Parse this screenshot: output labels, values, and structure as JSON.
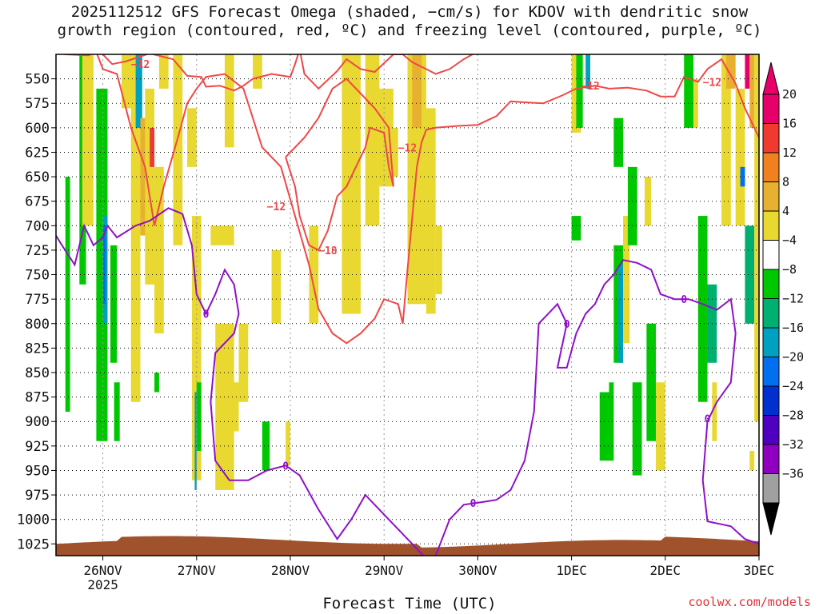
{
  "chart_data": {
    "type": "heatmap",
    "title_line1": "2025112512 GFS Forecast Omega (shaded, −cm/s) for KDOV with dendritic snow",
    "title_line2": "growth region (contoured, red, ºC) and freezing level (contoured, purple, ºC)",
    "xlabel": "Forecast Time (UTC)",
    "x_ticks": [
      "26NOV",
      "27NOV",
      "28NOV",
      "29NOV",
      "30NOV",
      "1DEC",
      "2DEC",
      "3DEC"
    ],
    "x_year_label": "2025",
    "x_range_days": [
      25.5,
      33.0
    ],
    "y_ticks": [
      550,
      575,
      600,
      625,
      650,
      675,
      700,
      725,
      750,
      775,
      800,
      825,
      850,
      875,
      900,
      925,
      950,
      975,
      1000,
      1025
    ],
    "y_range_hpa": [
      525,
      1037
    ],
    "colorbar": {
      "labels": [
        "20",
        "16",
        "12",
        "8",
        "4",
        "−4",
        "−8",
        "−12",
        "−16",
        "−20",
        "−24",
        "−28",
        "−32",
        "−36"
      ],
      "colors": [
        "#e8006a",
        "#f03a30",
        "#f08020",
        "#e8b030",
        "#e8d830",
        "#ffffff",
        "#00c800",
        "#00b070",
        "#00a0c0",
        "#0070f0",
        "#0030d0",
        "#5000c0",
        "#9000c0",
        "#a0a0a0"
      ],
      "top_arrow_color": "#e8006a",
      "bottom_arrow_color": "#000000"
    },
    "contour_labels": {
      "red": [
        "−12",
        "−12",
        "−12",
        "−18",
        "−12",
        "−12"
      ],
      "purple": [
        "0",
        "0",
        "0",
        "0",
        "0",
        "0"
      ]
    },
    "red_12C_line": [
      [
        25.5,
        522
      ],
      [
        25.6,
        525
      ],
      [
        25.85,
        526
      ],
      [
        25.95,
        520
      ],
      [
        26.1,
        535
      ],
      [
        26.25,
        532
      ],
      [
        26.5,
        524
      ],
      [
        26.75,
        530
      ],
      [
        26.9,
        547
      ],
      [
        27.05,
        548
      ],
      [
        27.1,
        558
      ],
      [
        27.25,
        557
      ],
      [
        27.4,
        562
      ],
      [
        27.5,
        557
      ],
      [
        27.6,
        550
      ],
      [
        27.8,
        545
      ],
      [
        28.0,
        548
      ],
      [
        28.05,
        535
      ],
      [
        28.1,
        520
      ],
      [
        28.15,
        545
      ],
      [
        28.3,
        560
      ],
      [
        28.5,
        542
      ],
      [
        28.6,
        530
      ],
      [
        28.75,
        540
      ],
      [
        28.9,
        543
      ],
      [
        29.1,
        525
      ],
      [
        29.2,
        525
      ],
      [
        29.3,
        533
      ],
      [
        29.45,
        540
      ],
      [
        29.55,
        545
      ],
      [
        29.7,
        540
      ],
      [
        29.85,
        530
      ],
      [
        30.0,
        522
      ]
    ],
    "red_12C_line_2": [
      [
        25.92,
        520
      ],
      [
        26.0,
        540
      ],
      [
        26.15,
        545
      ],
      [
        26.3,
        600
      ],
      [
        26.45,
        640
      ],
      [
        26.55,
        700
      ],
      [
        26.65,
        660
      ],
      [
        26.8,
        610
      ],
      [
        26.9,
        575
      ],
      [
        27.0,
        560
      ],
      [
        27.1,
        548
      ],
      [
        27.3,
        545
      ],
      [
        27.5,
        560
      ],
      [
        27.6,
        590
      ],
      [
        27.7,
        620
      ],
      [
        27.9,
        640
      ],
      [
        28.05,
        690
      ],
      [
        28.2,
        740
      ],
      [
        28.3,
        785
      ],
      [
        28.45,
        810
      ],
      [
        28.6,
        820
      ],
      [
        28.75,
        810
      ],
      [
        28.9,
        795
      ],
      [
        29.0,
        775
      ],
      [
        29.15,
        780
      ],
      [
        29.2,
        800
      ],
      [
        29.25,
        745
      ],
      [
        29.35,
        640
      ],
      [
        29.4,
        615
      ],
      [
        29.45,
        602
      ],
      [
        29.55,
        600
      ],
      [
        29.8,
        598
      ],
      [
        30.0,
        597
      ],
      [
        30.2,
        588
      ],
      [
        30.35,
        573
      ],
      [
        30.5,
        574
      ],
      [
        30.7,
        575
      ],
      [
        30.9,
        567
      ],
      [
        31.05,
        560
      ],
      [
        31.25,
        557
      ],
      [
        31.4,
        560
      ],
      [
        31.6,
        559
      ],
      [
        31.8,
        562
      ],
      [
        31.95,
        568
      ],
      [
        32.1,
        568
      ],
      [
        32.2,
        548
      ],
      [
        32.35,
        553
      ],
      [
        32.45,
        540
      ],
      [
        32.6,
        530
      ],
      [
        32.75,
        555
      ],
      [
        32.85,
        580
      ],
      [
        33.0,
        610
      ]
    ],
    "red_18C_line": [
      [
        27.95,
        630
      ],
      [
        28.05,
        660
      ],
      [
        28.1,
        690
      ],
      [
        28.2,
        720
      ],
      [
        28.3,
        725
      ],
      [
        28.4,
        705
      ],
      [
        28.5,
        670
      ],
      [
        28.6,
        660
      ],
      [
        28.7,
        640
      ],
      [
        28.8,
        620
      ],
      [
        28.85,
        600
      ],
      [
        29.0,
        605
      ],
      [
        29.05,
        640
      ],
      [
        29.1,
        660
      ],
      [
        29.05,
        600
      ],
      [
        28.9,
        580
      ],
      [
        28.75,
        565
      ],
      [
        28.6,
        550
      ],
      [
        28.45,
        560
      ],
      [
        28.3,
        590
      ],
      [
        28.15,
        610
      ],
      [
        27.95,
        630
      ]
    ],
    "purple_0C_line": [
      [
        25.5,
        710
      ],
      [
        25.55,
        718
      ],
      [
        25.7,
        740
      ],
      [
        25.8,
        700
      ],
      [
        25.9,
        720
      ],
      [
        26.0,
        712
      ],
      [
        26.05,
        700
      ],
      [
        26.15,
        712
      ],
      [
        26.35,
        700
      ],
      [
        26.5,
        695
      ],
      [
        26.7,
        682
      ],
      [
        26.85,
        688
      ],
      [
        26.95,
        720
      ],
      [
        27.0,
        770
      ],
      [
        27.1,
        790
      ],
      [
        27.2,
        770
      ],
      [
        27.3,
        745
      ],
      [
        27.4,
        760
      ],
      [
        27.45,
        790
      ],
      [
        27.4,
        810
      ],
      [
        27.2,
        830
      ],
      [
        27.15,
        880
      ],
      [
        27.2,
        940
      ],
      [
        27.35,
        960
      ],
      [
        27.55,
        960
      ],
      [
        27.75,
        950
      ],
      [
        27.95,
        945
      ],
      [
        28.1,
        955
      ],
      [
        28.3,
        990
      ],
      [
        28.5,
        1020
      ],
      [
        28.65,
        1000
      ],
      [
        28.8,
        975
      ],
      [
        28.95,
        990
      ],
      [
        29.1,
        1005
      ],
      [
        29.25,
        1020
      ],
      [
        29.35,
        1030
      ],
      [
        29.45,
        1040
      ]
    ],
    "purple_0C_line_2": [
      [
        29.55,
        1037
      ],
      [
        29.7,
        1000
      ],
      [
        29.85,
        985
      ],
      [
        30.0,
        983
      ],
      [
        30.2,
        980
      ],
      [
        30.35,
        970
      ],
      [
        30.5,
        940
      ],
      [
        30.6,
        890
      ],
      [
        30.65,
        800
      ],
      [
        30.85,
        780
      ],
      [
        30.95,
        800
      ],
      [
        30.85,
        845
      ],
      [
        30.95,
        845
      ],
      [
        31.05,
        810
      ],
      [
        31.15,
        790
      ],
      [
        31.25,
        780
      ],
      [
        31.35,
        760
      ],
      [
        31.45,
        750
      ],
      [
        31.55,
        735
      ],
      [
        31.7,
        738
      ],
      [
        31.85,
        745
      ],
      [
        31.95,
        770
      ],
      [
        32.1,
        775
      ],
      [
        32.25,
        775
      ],
      [
        32.4,
        780
      ],
      [
        32.55,
        786
      ],
      [
        32.7,
        775
      ],
      [
        32.75,
        810
      ],
      [
        32.7,
        860
      ],
      [
        32.55,
        880
      ],
      [
        32.45,
        900
      ],
      [
        32.4,
        960
      ],
      [
        32.45,
        1002
      ],
      [
        32.6,
        1005
      ],
      [
        32.7,
        1007
      ],
      [
        32.85,
        1020
      ],
      [
        33.0,
        1025
      ]
    ]
  }
}
